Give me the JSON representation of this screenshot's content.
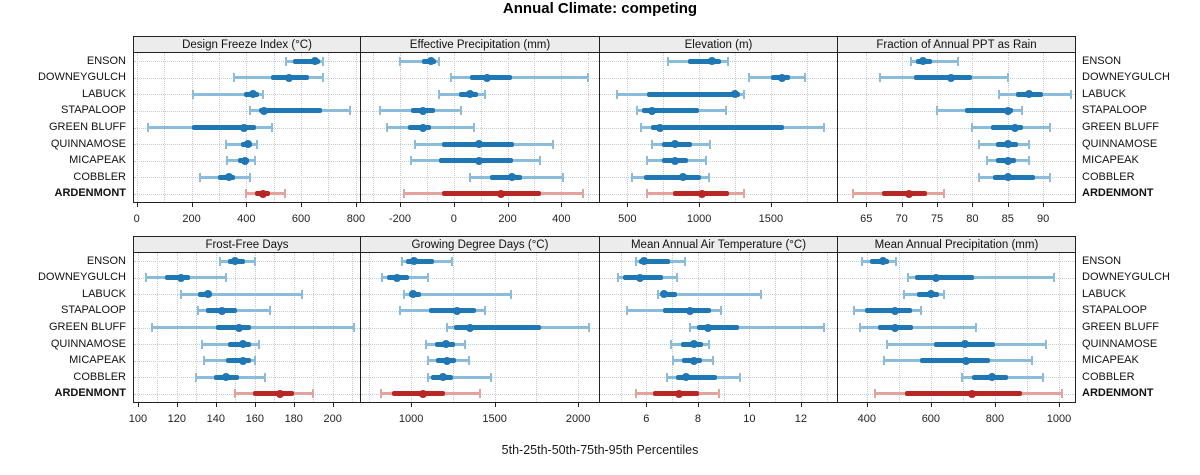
{
  "chart_data": {
    "type": "dotplot-intervals",
    "title": "Annual Climate: competing",
    "footer": "5th-25th-50th-75th-95th Percentiles",
    "percentiles": [
      5,
      25,
      50,
      75,
      95
    ],
    "sites": [
      "ENSON",
      "DOWNEYGULCH",
      "LABUCK",
      "STAPALOOP",
      "GREEN BLUFF",
      "QUINNAMOSE",
      "MICAPEAK",
      "COBBLER",
      "ARDENMONT"
    ],
    "highlight_site": "ARDENMONT",
    "legend_position": "none",
    "grid": "dotted",
    "layout": "2 rows x 4 columns",
    "panels": [
      {
        "title": "Design Freeze Index (°C)",
        "ticks": [
          0,
          200,
          400,
          600,
          800
        ],
        "grid_step": 100,
        "xlim": [
          -10,
          815
        ],
        "values": [
          [
            545,
            570,
            650,
            670,
            680
          ],
          [
            355,
            490,
            555,
            630,
            680
          ],
          [
            205,
            390,
            425,
            445,
            460
          ],
          [
            415,
            445,
            465,
            675,
            780
          ],
          [
            40,
            200,
            390,
            435,
            495
          ],
          [
            325,
            380,
            405,
            420,
            440
          ],
          [
            330,
            370,
            395,
            410,
            430
          ],
          [
            230,
            295,
            335,
            360,
            415
          ],
          [
            400,
            430,
            460,
            485,
            540
          ]
        ]
      },
      {
        "title": "Effective Precipitation (mm)",
        "ticks": [
          -200,
          0,
          200,
          400
        ],
        "grid_step": 100,
        "xlim": [
          -345,
          540
        ],
        "values": [
          [
            -200,
            -120,
            -85,
            -65,
            -55
          ],
          [
            -10,
            60,
            125,
            215,
            500
          ],
          [
            -55,
            20,
            60,
            90,
            115
          ],
          [
            -275,
            -160,
            -115,
            -70,
            25
          ],
          [
            -250,
            -170,
            -115,
            -85,
            75
          ],
          [
            -145,
            -45,
            95,
            225,
            370
          ],
          [
            -160,
            -55,
            95,
            220,
            320
          ],
          [
            60,
            135,
            215,
            255,
            405
          ],
          [
            -185,
            -45,
            175,
            325,
            480
          ]
        ]
      },
      {
        "title": "Elevation (m)",
        "ticks": [
          500,
          1000,
          1500
        ],
        "grid_step": 250,
        "xlim": [
          310,
          1960
        ],
        "values": [
          [
            785,
            920,
            1090,
            1150,
            1200
          ],
          [
            1350,
            1500,
            1575,
            1630,
            1740
          ],
          [
            430,
            640,
            1250,
            1285,
            1310
          ],
          [
            570,
            605,
            670,
            1000,
            1185
          ],
          [
            595,
            665,
            730,
            1590,
            1870
          ],
          [
            675,
            745,
            835,
            950,
            1075
          ],
          [
            635,
            740,
            835,
            920,
            1045
          ],
          [
            535,
            615,
            885,
            1010,
            1070
          ],
          [
            640,
            815,
            1020,
            1210,
            1315
          ]
        ]
      },
      {
        "title": "Fraction of Annual PPT as Rain",
        "ticks": [
          65,
          70,
          75,
          80,
          85,
          90
        ],
        "grid_step": 5,
        "xlim": [
          61,
          94.5
        ],
        "values": [
          [
            71.3,
            72,
            73,
            74.3,
            78
          ],
          [
            67,
            71.8,
            77,
            80,
            85
          ],
          [
            83.8,
            86.2,
            88,
            90,
            94
          ],
          [
            75,
            79,
            85,
            85.8,
            87
          ],
          [
            80,
            82.6,
            86,
            87.2,
            91
          ],
          [
            81,
            83.3,
            85,
            86.4,
            88
          ],
          [
            82,
            83.3,
            85,
            86.1,
            88
          ],
          [
            81,
            82.9,
            85,
            88.9,
            91
          ],
          [
            63.1,
            67.2,
            71,
            73.6,
            76
          ]
        ]
      },
      {
        "title": "Frost-Free Days",
        "ticks": [
          100,
          120,
          140,
          160,
          180,
          200
        ],
        "grid_step": 10,
        "xlim": [
          98,
          214
        ],
        "values": [
          [
            142,
            146,
            150,
            155,
            160
          ],
          [
            104,
            114,
            122,
            127,
            145
          ],
          [
            122,
            131,
            136,
            138,
            184
          ],
          [
            131,
            135,
            143,
            151,
            168
          ],
          [
            107,
            140,
            152,
            158,
            211
          ],
          [
            133,
            146,
            154,
            158,
            162
          ],
          [
            134,
            145,
            154,
            158,
            160
          ],
          [
            130,
            139,
            145,
            152,
            165
          ],
          [
            150,
            159,
            173,
            180,
            190
          ]
        ]
      },
      {
        "title": "Growing Degree Days (°C)",
        "ticks": [
          1000,
          1500,
          2000
        ],
        "grid_step": 250,
        "xlim": [
          700,
          2125
        ],
        "values": [
          [
            945,
            970,
            1015,
            1140,
            1245
          ],
          [
            825,
            855,
            915,
            990,
            1100
          ],
          [
            960,
            985,
            1010,
            1060,
            1600
          ],
          [
            935,
            1110,
            1275,
            1390,
            1440
          ],
          [
            1215,
            1255,
            1350,
            1780,
            2065
          ],
          [
            1090,
            1145,
            1210,
            1260,
            1320
          ],
          [
            1100,
            1150,
            1215,
            1270,
            1345
          ],
          [
            1100,
            1120,
            1190,
            1250,
            1480
          ],
          [
            820,
            885,
            1070,
            1205,
            1415
          ]
        ]
      },
      {
        "title": "Mean Annual Air Temperature (°C)",
        "ticks": [
          6,
          8,
          10,
          12
        ],
        "grid_step": 1,
        "xlim": [
          4.2,
          13.4
        ],
        "values": [
          [
            5.6,
            5.7,
            5.9,
            6.9,
            7.5
          ],
          [
            4.9,
            5.1,
            5.75,
            6.65,
            7.2
          ],
          [
            6.45,
            6.55,
            6.7,
            7.2,
            10.45
          ],
          [
            5.25,
            6.65,
            7.7,
            8.5,
            8.9
          ],
          [
            7.7,
            7.95,
            8.4,
            9.6,
            12.9
          ],
          [
            6.95,
            7.35,
            7.85,
            8.2,
            8.45
          ],
          [
            7.05,
            7.4,
            7.85,
            8.15,
            8.6
          ],
          [
            6.8,
            7.15,
            7.55,
            8.75,
            9.65
          ],
          [
            5.6,
            6.25,
            7.25,
            8.05,
            8.8
          ]
        ]
      },
      {
        "title": "Mean Annual Precipitation (mm)",
        "ticks": [
          400,
          600,
          800,
          1000
        ],
        "grid_step": 100,
        "xlim": [
          310,
          1050
        ],
        "values": [
          [
            385,
            410,
            450,
            470,
            490
          ],
          [
            530,
            550,
            615,
            735,
            985
          ],
          [
            515,
            557,
            600,
            625,
            640
          ],
          [
            360,
            395,
            487,
            540,
            570
          ],
          [
            380,
            435,
            487,
            543,
            740
          ],
          [
            463,
            610,
            705,
            800,
            960
          ],
          [
            455,
            565,
            710,
            785,
            915
          ],
          [
            698,
            727,
            790,
            840,
            950
          ],
          [
            425,
            520,
            727,
            883,
            1010
          ]
        ]
      }
    ],
    "colors": {
      "series_main": "#1f77b4",
      "series_light": "#8cbcdc",
      "highlight_main": "#b82723",
      "highlight_light": "#e2a39c",
      "strip_bg": "#ececec",
      "grid": "#c3cbd3",
      "border": "#222222",
      "tick": "#222222"
    }
  }
}
